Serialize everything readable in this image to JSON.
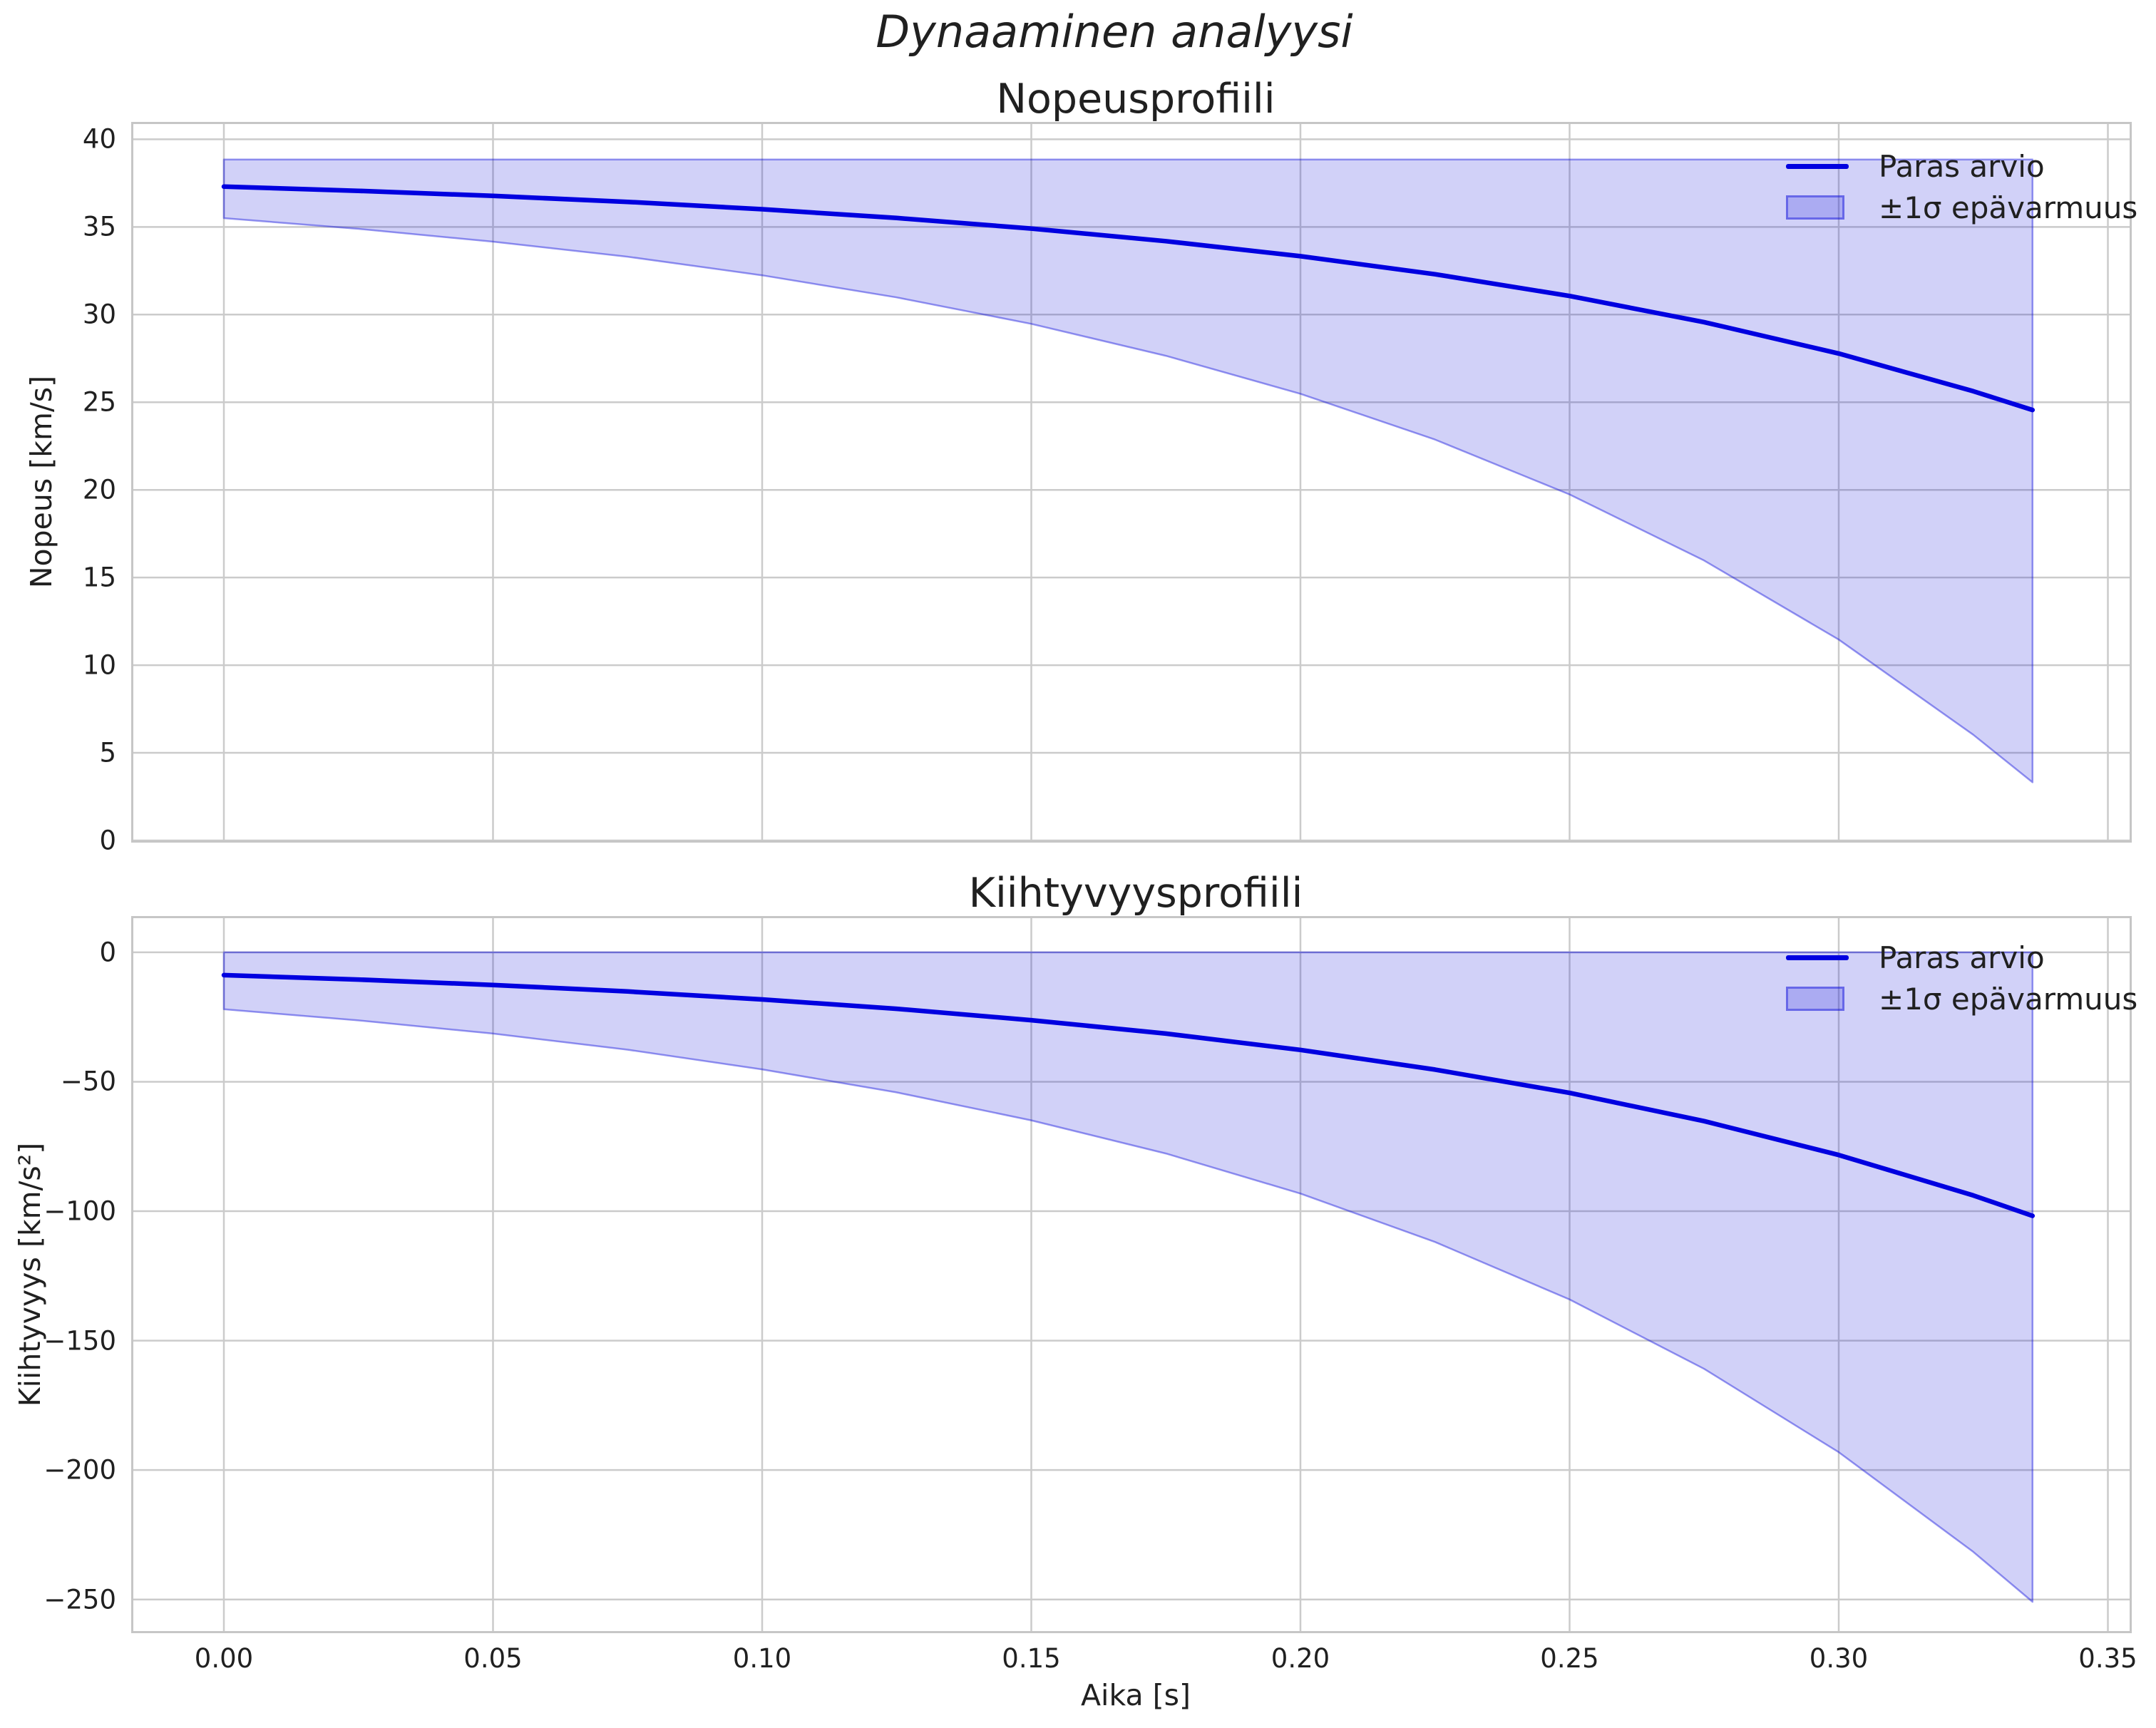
{
  "suptitle": "Dynaaminen analyysi",
  "xlabel": "Aika [s]",
  "legend": {
    "line": "Paras arvio",
    "band": "±1σ epävarmuus"
  },
  "colors": {
    "line": "#0000e0",
    "band_fill": "rgba(10,10,220,0.19)",
    "band_edge": "rgba(10,10,220,0.42)",
    "grid": "#cbcbcb",
    "spine": "#c6c6c6",
    "text": "#202020"
  },
  "chart_data": [
    {
      "type": "line",
      "title": "Nopeusprofiili",
      "ylabel": "Nopeus [km/s]",
      "xlabel": "",
      "legend_entries": [
        "Paras arvio",
        "±1σ epävarmuus"
      ],
      "legend_position": "upper right",
      "grid": true,
      "xlim": [
        -0.01682,
        0.35404
      ],
      "ylim": [
        0,
        40.87
      ],
      "xticks": [
        0.0,
        0.05,
        0.1,
        0.15,
        0.2,
        0.25,
        0.3,
        0.35
      ],
      "xtick_labels": [],
      "yticks": [
        0,
        5,
        10,
        15,
        20,
        25,
        30,
        35,
        40
      ],
      "ytick_labels": [
        "0",
        "5",
        "10",
        "15",
        "20",
        "25",
        "30",
        "35",
        "40"
      ],
      "x": [
        0,
        0.025,
        0.05,
        0.075,
        0.1,
        0.125,
        0.15,
        0.175,
        0.2,
        0.225,
        0.25,
        0.275,
        0.3,
        0.325,
        0.336
      ],
      "series": [
        {
          "name": "Paras arvio",
          "values": [
            37.3,
            37.06,
            36.77,
            36.43,
            36.01,
            35.51,
            34.91,
            34.19,
            33.33,
            32.3,
            31.06,
            29.57,
            27.78,
            25.63,
            24.56
          ]
        }
      ],
      "band": {
        "name": "±1σ epävarmuus",
        "upper": [
          38.85,
          38.85,
          38.85,
          38.85,
          38.85,
          38.85,
          38.85,
          38.85,
          38.85,
          38.85,
          38.85,
          38.85,
          38.85,
          38.85,
          38.85
        ],
        "lower": [
          35.5,
          34.89,
          34.16,
          33.3,
          32.24,
          30.98,
          29.47,
          27.65,
          25.48,
          22.87,
          19.74,
          15.97,
          11.46,
          6.03,
          3.32
        ]
      }
    },
    {
      "type": "line",
      "title": "Kiihtyvyysprofiili",
      "ylabel": "Kiihtyvyys [km/s²]",
      "xlabel": "Aika [s]",
      "legend_entries": [
        "Paras arvio",
        "±1σ epävarmuus"
      ],
      "legend_position": "upper right",
      "grid": true,
      "xlim": [
        -0.01682,
        0.35404
      ],
      "ylim": [
        -262.2,
        13.2
      ],
      "xticks": [
        0.0,
        0.05,
        0.1,
        0.15,
        0.2,
        0.25,
        0.3,
        0.35
      ],
      "xtick_labels": [
        "0.00",
        "0.05",
        "0.10",
        "0.15",
        "0.20",
        "0.25",
        "0.30",
        "0.35"
      ],
      "yticks": [
        0,
        -50,
        -100,
        -150,
        -200,
        -250
      ],
      "ytick_labels": [
        "0",
        "−50",
        "−100",
        "−150",
        "−200",
        "−250"
      ],
      "x": [
        0,
        0.025,
        0.05,
        0.075,
        0.1,
        0.125,
        0.15,
        0.175,
        0.2,
        0.225,
        0.25,
        0.275,
        0.3,
        0.325,
        0.336
      ],
      "series": [
        {
          "name": "Paras arvio",
          "values": [
            -8.8,
            -10.5,
            -12.6,
            -15.1,
            -18.2,
            -21.8,
            -26.2,
            -31.4,
            -37.7,
            -45.3,
            -54.3,
            -65.2,
            -78.3,
            -93.9,
            -101.8
          ]
        }
      ],
      "band": {
        "name": "±1σ epävarmuus",
        "upper": [
          0,
          0,
          0,
          0,
          0,
          0,
          0,
          0,
          0,
          0,
          0,
          0,
          0,
          0,
          0
        ],
        "lower": [
          -22,
          -26.3,
          -31.4,
          -37.6,
          -45.2,
          -54.1,
          -64.9,
          -77.7,
          -93.2,
          -111.9,
          -134.1,
          -160.9,
          -193.1,
          -231.6,
          -250.9
        ]
      }
    }
  ]
}
